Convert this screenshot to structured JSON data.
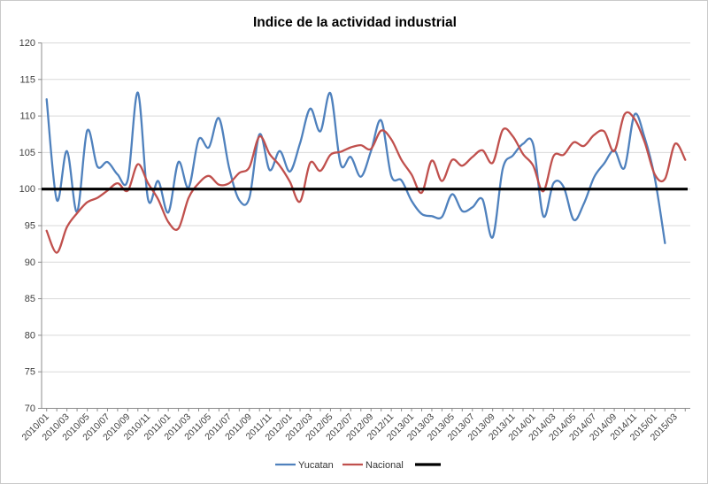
{
  "title": "Indice de la actividad industrial",
  "legend": {
    "position": "bottom",
    "items": [
      {
        "label": "Yucatan",
        "color": "#4F81BD"
      },
      {
        "label": "Nacional",
        "color": "#C0504D"
      },
      {
        "label": "",
        "color": "#000000"
      }
    ]
  },
  "chart_data": {
    "type": "line",
    "title": "Indice de la actividad industrial",
    "xlabel": "",
    "ylabel": "",
    "ylim": [
      70,
      120
    ],
    "ytick_step": 5,
    "yticks": [
      70,
      75,
      80,
      85,
      90,
      95,
      100,
      105,
      110,
      115,
      120
    ],
    "grid": true,
    "x_label_every": 2,
    "categories": [
      "2010/01",
      "2010/02",
      "2010/03",
      "2010/04",
      "2010/05",
      "2010/06",
      "2010/07",
      "2010/08",
      "2010/09",
      "2010/10",
      "2010/11",
      "2010/12",
      "2011/01",
      "2011/02",
      "2011/03",
      "2011/04",
      "2011/05",
      "2011/06",
      "2011/07",
      "2011/08",
      "2011/09",
      "2011/10",
      "2011/11",
      "2011/12",
      "2012/01",
      "2012/02",
      "2012/03",
      "2012/04",
      "2012/05",
      "2012/06",
      "2012/07",
      "2012/08",
      "2012/09",
      "2012/10",
      "2012/11",
      "2012/12",
      "2013/01",
      "2013/02",
      "2013/03",
      "2013/04",
      "2013/05",
      "2013/06",
      "2013/07",
      "2013/08",
      "2013/09",
      "2013/10",
      "2013/11",
      "2013/12",
      "2014/01",
      "2014/02",
      "2014/03",
      "2014/04",
      "2014/05",
      "2014/06",
      "2014/07",
      "2014/08",
      "2014/09",
      "2014/10",
      "2014/11",
      "2014/12",
      "2015/01",
      "2015/02",
      "2015/03",
      "2015/04"
    ],
    "series": [
      {
        "name": "Yucatan",
        "color": "#4F81BD",
        "width": 2.3,
        "values": [
          112.3,
          98.5,
          105.2,
          96.9,
          108.0,
          103.1,
          103.7,
          102.0,
          101.3,
          113.2,
          98.6,
          101.1,
          96.8,
          103.7,
          100.2,
          106.8,
          105.7,
          109.7,
          102.9,
          98.5,
          98.8,
          107.5,
          102.6,
          105.2,
          102.4,
          106.3,
          111.0,
          107.9,
          113.1,
          103.4,
          104.4,
          101.7,
          105.2,
          109.4,
          101.8,
          101.2,
          98.4,
          96.6,
          96.3,
          96.2,
          99.3,
          97.0,
          97.5,
          98.6,
          93.4,
          102.8,
          104.6,
          106.2,
          106.1,
          96.3,
          100.8,
          100.3,
          95.8,
          98.0,
          101.6,
          103.5,
          105.3,
          102.9,
          110.2,
          107.0,
          101.5,
          92.6
        ]
      },
      {
        "name": "Nacional",
        "color": "#C0504D",
        "width": 2.3,
        "values": [
          94.3,
          91.3,
          94.8,
          96.7,
          98.2,
          98.8,
          99.8,
          100.8,
          99.8,
          103.4,
          100.8,
          98.6,
          95.5,
          94.6,
          98.8,
          100.8,
          101.8,
          100.6,
          100.8,
          102.2,
          103.0,
          107.2,
          104.8,
          103.2,
          101.0,
          98.3,
          103.6,
          102.5,
          104.7,
          105.1,
          105.7,
          106.0,
          105.5,
          108.0,
          106.8,
          104.0,
          102.0,
          99.5,
          103.9,
          101.1,
          104.0,
          103.2,
          104.4,
          105.3,
          103.6,
          108.1,
          107.2,
          104.8,
          103.2,
          99.7,
          104.5,
          104.7,
          106.4,
          105.9,
          107.4,
          107.9,
          105.2,
          110.2,
          109.6,
          106.4,
          102.0,
          101.4,
          106.2,
          104.0
        ]
      },
      {
        "name": "",
        "color": "#000000",
        "width": 3.2,
        "constant": 100
      }
    ]
  },
  "colors": {
    "gridline": "#D9D9D9",
    "axis": "#8c8c8c",
    "tick_label": "#3f3f3f"
  }
}
